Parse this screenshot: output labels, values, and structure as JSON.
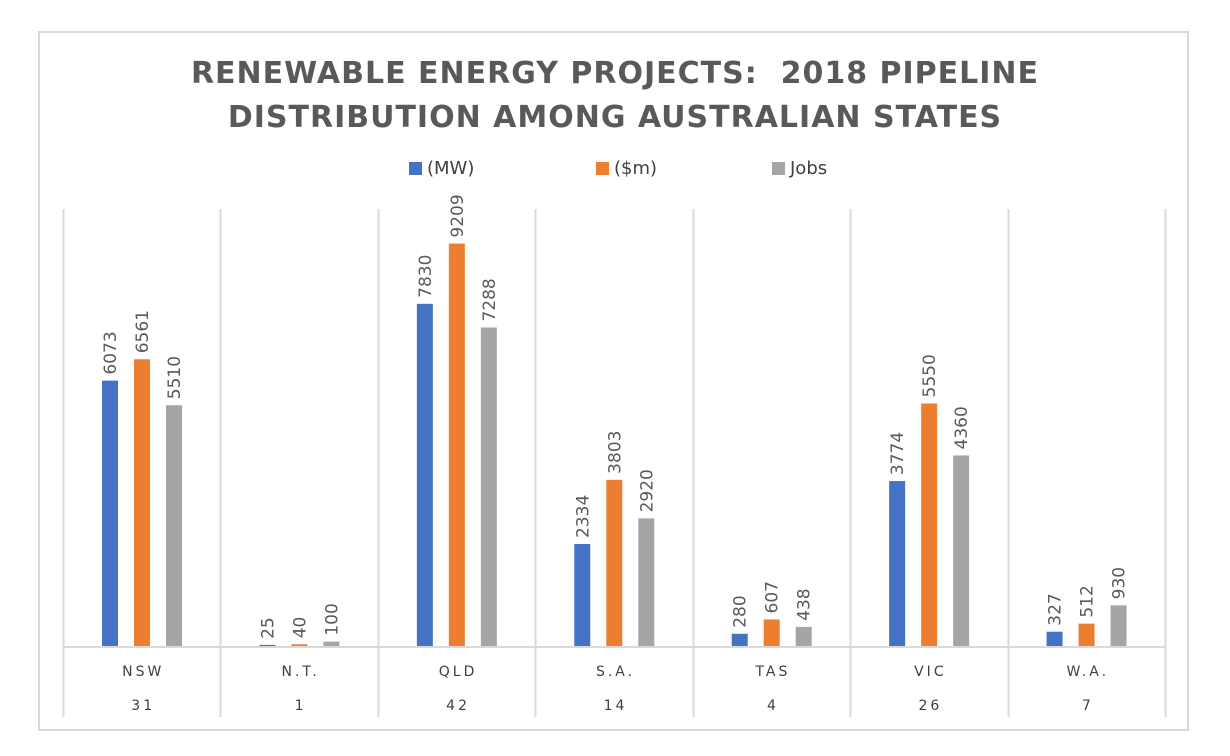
{
  "chart_data": {
    "type": "bar",
    "title": "RENEWABLE ENERGY PROJECTS:  2018 PIPELINE DISTRIBUTION AMONG AUSTRALIAN STATES",
    "title_lines": [
      "RENEWABLE ENERGY PROJECTS:  2018 PIPELINE",
      "DISTRIBUTION AMONG AUSTRALIAN STATES"
    ],
    "xlabel": "",
    "ylabel": "",
    "ylim": [
      0,
      10000
    ],
    "grid": false,
    "legend_position": "top",
    "categories": [
      "NSW",
      "N.T.",
      "QLD",
      "S.A.",
      "TAS",
      "VIC",
      "W.A."
    ],
    "category_counts": [
      "31",
      "1",
      "42",
      "14",
      "4",
      "26",
      "7"
    ],
    "series": [
      {
        "name": "(MW)",
        "color": "#4472c4",
        "values": [
          6073,
          25,
          7830,
          2334,
          280,
          3774,
          327
        ]
      },
      {
        "name": "($m)",
        "color": "#ed7d31",
        "values": [
          6561,
          40,
          9209,
          3803,
          607,
          5550,
          512
        ]
      },
      {
        "name": "Jobs",
        "color": "#a5a5a5",
        "values": [
          5510,
          100,
          7288,
          2920,
          438,
          4360,
          930
        ]
      }
    ],
    "data_labels": true,
    "data_label_orientation": "vertical"
  },
  "colors": {
    "frame_border": "#d9d9d9",
    "axis_line": "#d9d9d9",
    "title_text": "#595959",
    "label_text": "#595959"
  }
}
